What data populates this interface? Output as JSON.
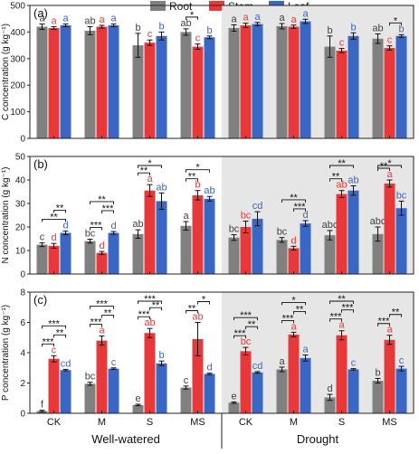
{
  "legend": {
    "placement": "top-center",
    "items": [
      {
        "name": "Root",
        "color": "#808080"
      },
      {
        "name": "Stem",
        "color": "#e8393a"
      },
      {
        "name": "Leaf",
        "color": "#3a66c4"
      }
    ]
  },
  "colors": {
    "shade": "#e6e6e6",
    "letter_root": "#404040",
    "letter_stem": "#e8393a",
    "letter_leaf": "#3a66c4"
  },
  "groups": [
    "Well-watered",
    "Drought"
  ],
  "categories": [
    "CK",
    "M",
    "S",
    "MS",
    "CK",
    "M",
    "S",
    "MS"
  ],
  "chart_data": [
    {
      "type": "bar",
      "panel": "(a)",
      "ylabel": "C concentration (g kg⁻¹)",
      "ylim": [
        0,
        500
      ],
      "yticks": [
        0,
        100,
        200,
        300,
        400,
        500
      ],
      "shaded_half": "right",
      "grid": false,
      "series": [
        {
          "name": "Root",
          "values": [
            420,
            405,
            350,
            400,
            415,
            422,
            345,
            375
          ],
          "errors": [
            10,
            15,
            45,
            12,
            12,
            10,
            40,
            18
          ],
          "letters": [
            "a",
            "ab",
            "b",
            "ab",
            "a",
            "a",
            "b",
            "ab"
          ]
        },
        {
          "name": "Stem",
          "values": [
            415,
            420,
            360,
            345,
            425,
            420,
            330,
            340
          ],
          "errors": [
            5,
            5,
            10,
            10,
            8,
            6,
            8,
            8
          ],
          "letters": [
            "a",
            "a",
            "c",
            "c",
            "a",
            "a",
            "c",
            "c"
          ]
        },
        {
          "name": "Leaf",
          "values": [
            425,
            425,
            385,
            380,
            430,
            440,
            385,
            385
          ],
          "errors": [
            5,
            5,
            15,
            5,
            6,
            8,
            12,
            5
          ],
          "letters": [
            "a",
            "a",
            "b",
            "b",
            "a",
            "a",
            "b",
            "b"
          ]
        }
      ],
      "sig_brackets": [
        {
          "group": 3,
          "from": "Root",
          "to": "Stem",
          "label": "*"
        },
        {
          "group": 7,
          "from": "Stem",
          "to": "Leaf",
          "label": "*"
        }
      ]
    },
    {
      "type": "bar",
      "panel": "(b)",
      "ylabel": "N concentration (g kg⁻¹)",
      "ylim": [
        0,
        50
      ],
      "yticks": [
        0,
        10,
        20,
        30,
        40,
        50
      ],
      "shaded_half": "right",
      "grid": false,
      "series": [
        {
          "name": "Root",
          "values": [
            12.5,
            14,
            17,
            20.5,
            15.5,
            14.5,
            16.5,
            17
          ],
          "errors": [
            0.8,
            0.8,
            1.8,
            1.8,
            1.2,
            1.0,
            2.0,
            3.0
          ],
          "letters": [
            "c",
            "bc",
            "ab",
            "a",
            "bc",
            "bc",
            "abc",
            "abc"
          ]
        },
        {
          "name": "Stem",
          "values": [
            12,
            9,
            35.5,
            33.5,
            20,
            11,
            34,
            38.5
          ],
          "errors": [
            1.0,
            0.6,
            2.5,
            2.0,
            2.5,
            0.8,
            1.5,
            1.5
          ],
          "letters": [
            "d",
            "d",
            "a",
            "b",
            "bc",
            "d",
            "ab",
            "a"
          ]
        },
        {
          "name": "Leaf",
          "values": [
            17.5,
            17.5,
            31,
            32,
            23.5,
            21.5,
            35.5,
            28
          ],
          "errors": [
            0.8,
            0.6,
            3.5,
            1.0,
            3.0,
            1.2,
            2.0,
            3.0
          ],
          "letters": [
            "d",
            "d",
            "ab",
            "ab",
            "cd",
            "d",
            "ab",
            "bc"
          ]
        }
      ],
      "sig_brackets": [
        {
          "group": 0,
          "from": "Root",
          "to": "Leaf",
          "label": "**"
        },
        {
          "group": 0,
          "from": "Stem",
          "to": "Leaf",
          "label": "**"
        },
        {
          "group": 1,
          "from": "Root",
          "to": "Stem",
          "label": "***"
        },
        {
          "group": 1,
          "from": "Stem",
          "to": "Leaf",
          "label": "***"
        },
        {
          "group": 1,
          "from": "Root",
          "to": "Leaf",
          "label": "**"
        },
        {
          "group": 2,
          "from": "Root",
          "to": "Stem",
          "label": "**"
        },
        {
          "group": 2,
          "from": "Root",
          "to": "Leaf",
          "label": "*"
        },
        {
          "group": 3,
          "from": "Root",
          "to": "Stem",
          "label": "**"
        },
        {
          "group": 3,
          "from": "Root",
          "to": "Leaf",
          "label": "*"
        },
        {
          "group": 5,
          "from": "Stem",
          "to": "Leaf",
          "label": "***"
        },
        {
          "group": 5,
          "from": "Root",
          "to": "Leaf",
          "label": "**"
        },
        {
          "group": 6,
          "from": "Root",
          "to": "Stem",
          "label": "**"
        },
        {
          "group": 6,
          "from": "Root",
          "to": "Leaf",
          "label": "**"
        },
        {
          "group": 7,
          "from": "Root",
          "to": "Stem",
          "label": "**"
        },
        {
          "group": 7,
          "from": "Root",
          "to": "Leaf",
          "label": "*"
        }
      ]
    },
    {
      "type": "bar",
      "panel": "(c)",
      "ylabel": "P concentration (g kg⁻¹)",
      "ylim": [
        0,
        8
      ],
      "yticks": [
        0,
        2,
        4,
        6,
        8
      ],
      "shaded_half": "right",
      "grid": false,
      "series": [
        {
          "name": "Root",
          "values": [
            0.15,
            1.95,
            0.55,
            1.7,
            0.7,
            2.9,
            1.05,
            2.15
          ],
          "errors": [
            0.05,
            0.1,
            0.05,
            0.1,
            0.05,
            0.15,
            0.2,
            0.15
          ],
          "letters": [
            "f",
            "bc",
            "e",
            "c",
            "e",
            "a",
            "d",
            "b"
          ]
        },
        {
          "name": "Stem",
          "values": [
            3.6,
            4.8,
            5.3,
            4.9,
            4.1,
            5.2,
            5.15,
            4.85
          ],
          "errors": [
            0.2,
            0.3,
            0.3,
            1.1,
            0.25,
            0.15,
            0.3,
            0.3
          ],
          "letters": [
            "c",
            "a",
            "ab",
            "ab",
            "bc",
            "a",
            "a",
            "a"
          ]
        },
        {
          "name": "Leaf",
          "values": [
            2.85,
            2.95,
            3.3,
            2.6,
            2.7,
            3.65,
            2.9,
            2.95
          ],
          "errors": [
            0.05,
            0.05,
            0.15,
            0.05,
            0.05,
            0.2,
            0.05,
            0.15
          ],
          "letters": [
            "cd",
            "c",
            "b",
            "d",
            "cd",
            "a",
            "c",
            "c"
          ]
        }
      ],
      "sig_brackets": [
        {
          "group": 0,
          "from": "Root",
          "to": "Stem",
          "label": "***"
        },
        {
          "group": 0,
          "from": "Stem",
          "to": "Leaf",
          "label": "**"
        },
        {
          "group": 0,
          "from": "Root",
          "to": "Leaf",
          "label": "***"
        },
        {
          "group": 1,
          "from": "Root",
          "to": "Stem",
          "label": "***"
        },
        {
          "group": 1,
          "from": "Stem",
          "to": "Leaf",
          "label": "**"
        },
        {
          "group": 1,
          "from": "Root",
          "to": "Leaf",
          "label": "***"
        },
        {
          "group": 2,
          "from": "Root",
          "to": "Stem",
          "label": "***"
        },
        {
          "group": 2,
          "from": "Stem",
          "to": "Leaf",
          "label": "**"
        },
        {
          "group": 2,
          "from": "Root",
          "to": "Leaf",
          "label": "***"
        },
        {
          "group": 3,
          "from": "Root",
          "to": "Stem",
          "label": "**"
        },
        {
          "group": 3,
          "from": "Stem",
          "to": "Leaf",
          "label": "*"
        },
        {
          "group": 4,
          "from": "Root",
          "to": "Stem",
          "label": "***"
        },
        {
          "group": 4,
          "from": "Stem",
          "to": "Leaf",
          "label": "**"
        },
        {
          "group": 4,
          "from": "Root",
          "to": "Leaf",
          "label": "***"
        },
        {
          "group": 5,
          "from": "Root",
          "to": "Stem",
          "label": "***"
        },
        {
          "group": 5,
          "from": "Stem",
          "to": "Leaf",
          "label": "**"
        },
        {
          "group": 5,
          "from": "Root",
          "to": "Leaf",
          "label": "*"
        },
        {
          "group": 6,
          "from": "Root",
          "to": "Stem",
          "label": "***"
        },
        {
          "group": 6,
          "from": "Stem",
          "to": "Leaf",
          "label": "***"
        },
        {
          "group": 6,
          "from": "Root",
          "to": "Leaf",
          "label": "**"
        },
        {
          "group": 7,
          "from": "Root",
          "to": "Stem",
          "label": "***"
        },
        {
          "group": 7,
          "from": "Stem",
          "to": "Leaf",
          "label": "**"
        }
      ]
    }
  ]
}
